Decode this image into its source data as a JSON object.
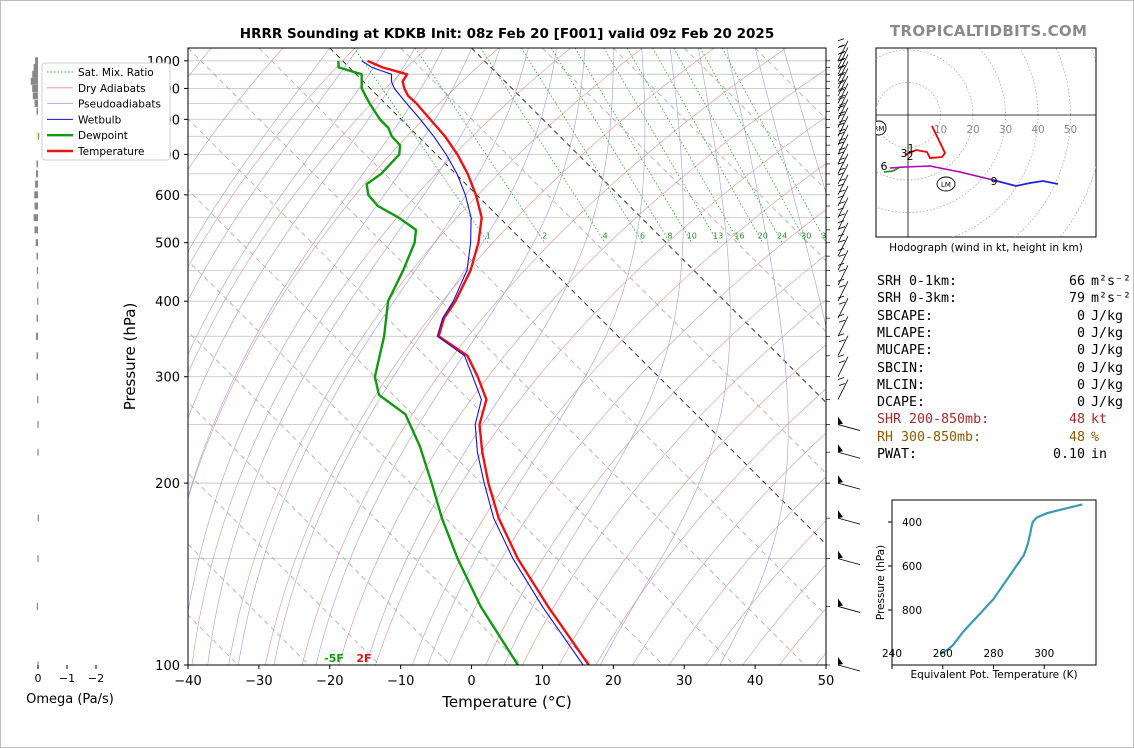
{
  "title": "HRRR Sounding at KDKB Init: 08z Feb 20 [F001] valid 09z Feb 20 2025",
  "brand": "TROPICALTIDBITS.COM",
  "chart_data": {
    "type": "line",
    "title": "HRRR Sounding at KDKB Init: 08z Feb 20 [F001] valid 09z Feb 20 2025",
    "xlabel": "Temperature (°C)",
    "ylabel": "Pressure (hPa)",
    "xlim": [
      -40,
      50
    ],
    "ylim": [
      1050,
      100
    ],
    "log_y": true,
    "skew": true,
    "x_ticks": [
      -40,
      -30,
      -20,
      -10,
      0,
      10,
      20,
      30,
      40,
      50
    ],
    "x_tick_labels": [
      "−40",
      "−30",
      "−20",
      "−10",
      "0",
      "10",
      "20",
      "30",
      "40",
      "50"
    ],
    "y_ticks": [
      100,
      200,
      300,
      400,
      500,
      600,
      700,
      800,
      900,
      1000
    ],
    "legend_position": "top-left",
    "legend": [
      "Sat. Mix. Ratio",
      "Dry Adiabats",
      "Pseudoadiabats",
      "Wetbulb",
      "Dewpoint",
      "Temperature"
    ],
    "mixing_ratio_labels": [
      "1",
      "2",
      "4",
      "6",
      "8",
      "10",
      "13",
      "16",
      "20",
      "24",
      "30",
      "36"
    ],
    "surface_labels": {
      "dewpoint": "-5F",
      "temperature": "2F"
    },
    "series": [
      {
        "name": "Temperature",
        "color": "#ee1111",
        "points": [
          [
            1000,
            -16.5
          ],
          [
            975,
            -15.3
          ],
          [
            950,
            -12.8
          ],
          [
            925,
            -14.4
          ],
          [
            900,
            -15.2
          ],
          [
            875,
            -15.7
          ],
          [
            850,
            -15.6
          ],
          [
            800,
            -15.9
          ],
          [
            750,
            -16.2
          ],
          [
            700,
            -17.0
          ],
          [
            650,
            -18.3
          ],
          [
            600,
            -20.1
          ],
          [
            550,
            -22.5
          ],
          [
            500,
            -26.5
          ],
          [
            450,
            -31.5
          ],
          [
            400,
            -38.0
          ],
          [
            375,
            -42.0
          ],
          [
            350,
            -45.3
          ],
          [
            325,
            -44.0
          ],
          [
            300,
            -45.5
          ],
          [
            275,
            -47.5
          ],
          [
            250,
            -52.0
          ],
          [
            225,
            -55.5
          ],
          [
            200,
            -59.0
          ],
          [
            175,
            -62.5
          ],
          [
            150,
            -65.5
          ],
          [
            125,
            -68.0
          ],
          [
            100,
            -70.5
          ]
        ]
      },
      {
        "name": "Wetbulb",
        "color": "#1111dd",
        "points": [
          [
            1000,
            -17.3
          ],
          [
            975,
            -16.8
          ],
          [
            950,
            -15.0
          ],
          [
            925,
            -16.0
          ],
          [
            900,
            -16.6
          ],
          [
            850,
            -17.0
          ],
          [
            800,
            -17.3
          ],
          [
            750,
            -17.8
          ],
          [
            700,
            -18.6
          ],
          [
            650,
            -19.8
          ],
          [
            600,
            -21.6
          ],
          [
            550,
            -24.0
          ],
          [
            500,
            -27.6
          ],
          [
            450,
            -32.0
          ],
          [
            400,
            -38.3
          ],
          [
            375,
            -42.2
          ],
          [
            350,
            -45.5
          ],
          [
            325,
            -44.4
          ],
          [
            300,
            -46.2
          ],
          [
            275,
            -48.2
          ],
          [
            250,
            -52.6
          ],
          [
            225,
            -56.2
          ],
          [
            200,
            -59.6
          ],
          [
            175,
            -63.2
          ],
          [
            150,
            -66.2
          ],
          [
            125,
            -68.8
          ],
          [
            100,
            -71.3
          ]
        ]
      },
      {
        "name": "Dewpoint",
        "color": "#119911",
        "points": [
          [
            1000,
            -20.6
          ],
          [
            975,
            -21.5
          ],
          [
            950,
            -19.2
          ],
          [
            900,
            -21.2
          ],
          [
            850,
            -22.2
          ],
          [
            800,
            -23.0
          ],
          [
            775,
            -23.0
          ],
          [
            750,
            -23.7
          ],
          [
            725,
            -23.8
          ],
          [
            700,
            -25.2
          ],
          [
            650,
            -30.5
          ],
          [
            625,
            -34.0
          ],
          [
            600,
            -35.3
          ],
          [
            575,
            -35.5
          ],
          [
            550,
            -34.2
          ],
          [
            525,
            -33.5
          ],
          [
            500,
            -35.5
          ],
          [
            450,
            -41.0
          ],
          [
            400,
            -47.5
          ],
          [
            350,
            -53.0
          ],
          [
            300,
            -60.0
          ],
          [
            280,
            -62.0
          ],
          [
            260,
            -61.0
          ],
          [
            230,
            -63.5
          ],
          [
            200,
            -67.0
          ],
          [
            175,
            -70.5
          ],
          [
            150,
            -74.0
          ],
          [
            125,
            -77.5
          ],
          [
            100,
            -80.5
          ]
        ]
      }
    ],
    "omega": {
      "xlabel": "Omega (Pa/s)",
      "x_tick_labels": [
        "0",
        "−1",
        "−2"
      ],
      "levels": [
        1000,
        975,
        950,
        925,
        900,
        875,
        850,
        825,
        800,
        775,
        750,
        725,
        700,
        675,
        650,
        625,
        600,
        575,
        550,
        525,
        500,
        475,
        450,
        425,
        400,
        375,
        350,
        325,
        300,
        275,
        250,
        225,
        200,
        175,
        150,
        125,
        100
      ],
      "values": [
        -0.1,
        -0.15,
        -0.2,
        -0.25,
        -0.2,
        -0.18,
        -0.12,
        -0.05,
        0,
        0,
        0.02,
        0,
        0,
        -0.05,
        -0.07,
        -0.1,
        -0.13,
        -0.12,
        -0.15,
        -0.12,
        -0.08,
        -0.05,
        -0.04,
        -0.03,
        -0.03,
        -0.05,
        -0.07,
        -0.05,
        -0.05,
        -0.03,
        -0.02,
        -0.02,
        0,
        -0.01,
        -0.02,
        -0.04,
        -0.02
      ]
    },
    "hodograph": {
      "caption": "Hodograph (wind in kt, height in km)",
      "ring_labels": [
        "10",
        "20",
        "30",
        "40",
        "50"
      ],
      "storm_motion_labels": [
        "RM",
        "LM"
      ],
      "height_labels": [
        "1",
        "2",
        "3",
        "6",
        "9"
      ]
    },
    "theta_e": {
      "xlabel": "Equivalent Pot. Temperature (K)",
      "ylabel": "Pressure (hPa)",
      "x_tick_labels": [
        "240",
        "260",
        "280",
        "300"
      ],
      "y_tick_labels": [
        "400",
        "600",
        "800"
      ],
      "points": [
        [
          1000,
          259
        ],
        [
          980,
          262
        ],
        [
          960,
          264
        ],
        [
          930,
          266
        ],
        [
          900,
          268
        ],
        [
          850,
          272
        ],
        [
          800,
          276
        ],
        [
          750,
          280
        ],
        [
          700,
          283
        ],
        [
          650,
          286
        ],
        [
          600,
          289
        ],
        [
          550,
          292
        ],
        [
          500,
          293.5
        ],
        [
          450,
          294.5
        ],
        [
          420,
          295
        ],
        [
          400,
          295.5
        ],
        [
          380,
          297
        ],
        [
          360,
          301
        ],
        [
          340,
          308
        ],
        [
          320,
          315
        ]
      ]
    }
  },
  "stats": [
    {
      "label": "SRH 0-1km:",
      "value": "66",
      "unit": "m²s⁻²",
      "color": "#000000"
    },
    {
      "label": "SRH 0-3km:",
      "value": "79",
      "unit": "m²s⁻²",
      "color": "#000000"
    },
    {
      "label": "SBCAPE:",
      "value": "0",
      "unit": "J/kg",
      "color": "#000000"
    },
    {
      "label": "MLCAPE:",
      "value": "0",
      "unit": "J/kg",
      "color": "#000000"
    },
    {
      "label": "MUCAPE:",
      "value": "0",
      "unit": "J/kg",
      "color": "#000000"
    },
    {
      "label": "SBCIN:",
      "value": "0",
      "unit": "J/kg",
      "color": "#000000"
    },
    {
      "label": "MLCIN:",
      "value": "0",
      "unit": "J/kg",
      "color": "#000000"
    },
    {
      "label": "DCAPE:",
      "value": "0",
      "unit": "J/kg",
      "color": "#000000"
    },
    {
      "label": "SHR 200-850mb:",
      "value": "48",
      "unit": "kt",
      "color": "#a52a2a"
    },
    {
      "label": "RH 300-850mb:",
      "value": "48",
      "unit": "%",
      "color": "#8b5a00"
    },
    {
      "label": "PWAT:",
      "value": "0.10",
      "unit": "in",
      "color": "#000000"
    }
  ]
}
